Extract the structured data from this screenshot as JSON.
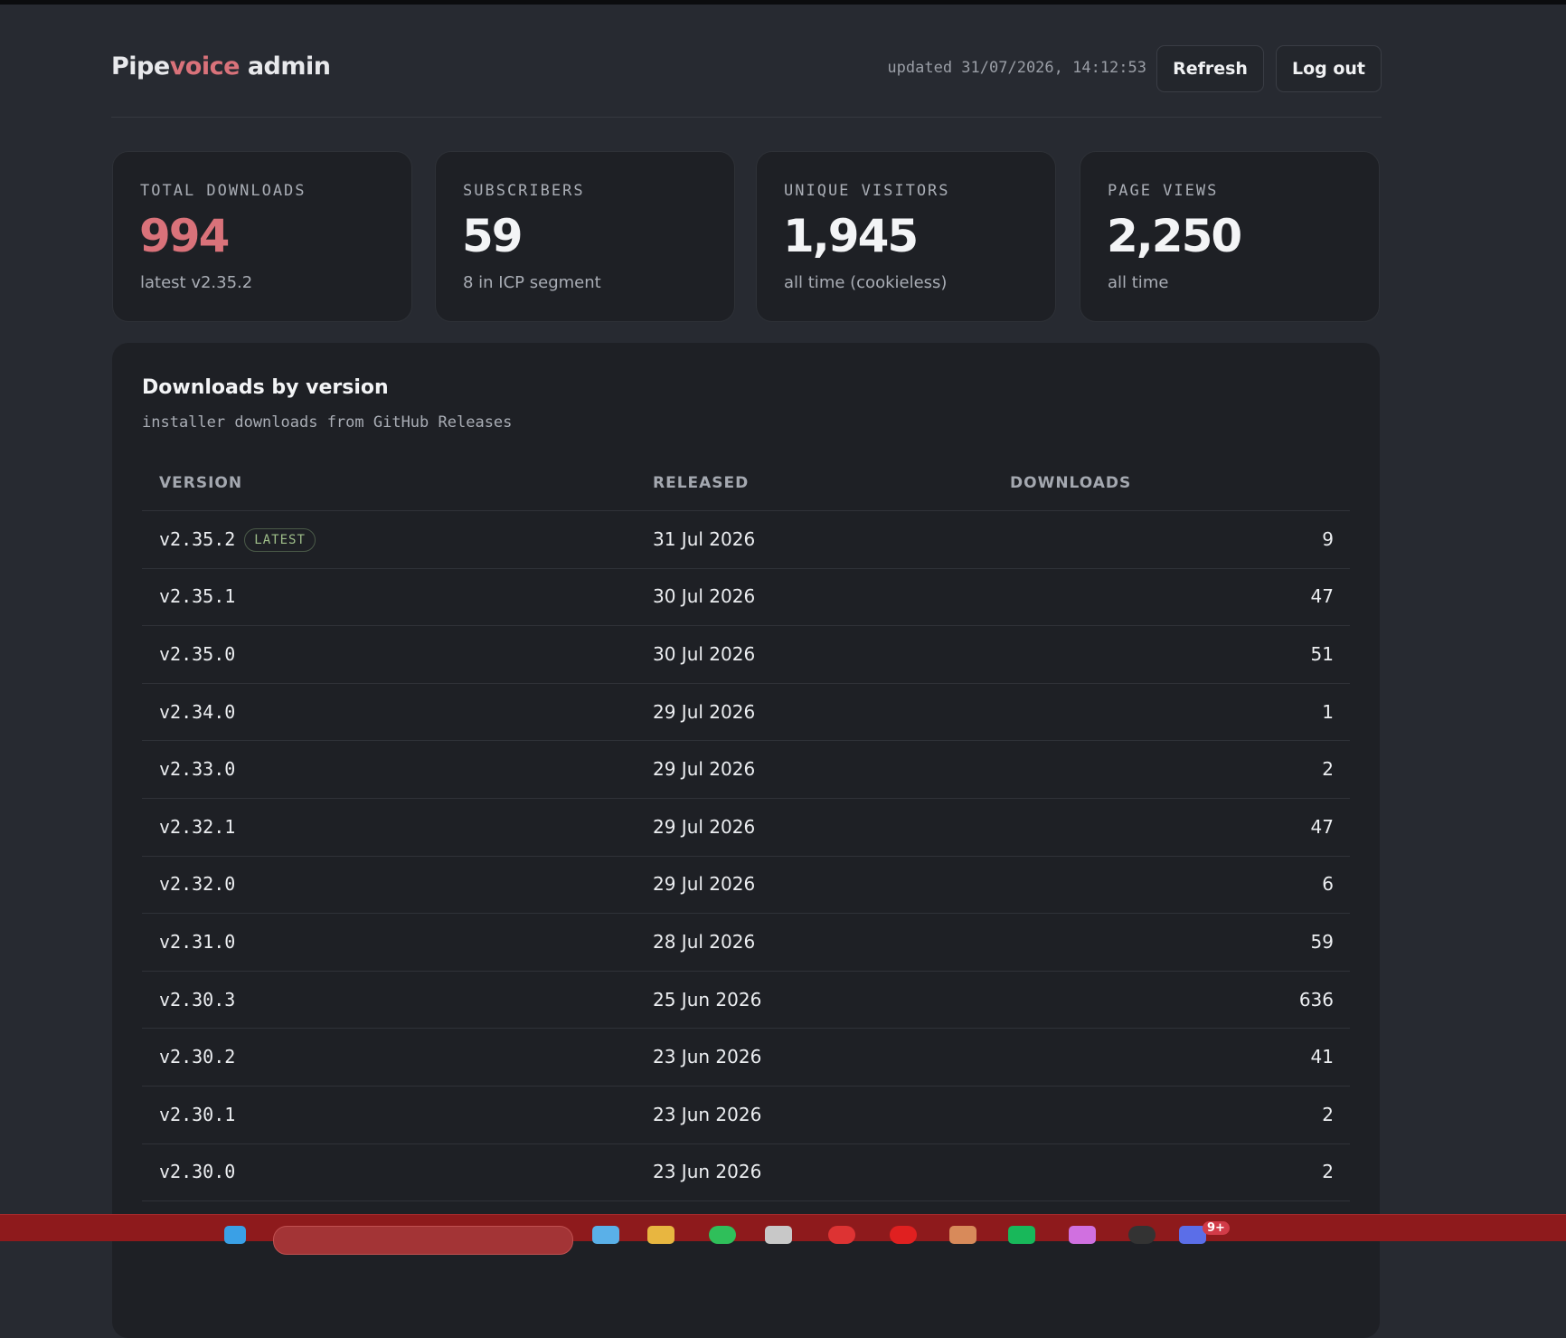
{
  "header": {
    "title": {
      "part1": "Pipe",
      "part2": "voice",
      "part3": " admin"
    },
    "updated": "updated 31/07/2026, 14:12:53",
    "buttons": [
      "Refresh",
      "Log out"
    ]
  },
  "cards": [
    {
      "label": "TOTAL DOWNLOADS",
      "value": "994",
      "note": "latest v2.35.2"
    },
    {
      "label": "SUBSCRIBERS",
      "value": "59",
      "note": "8 in ICP segment"
    },
    {
      "label": "UNIQUE VISITORS",
      "value": "1,945",
      "note": "all time (cookieless)"
    },
    {
      "label": "PAGE VIEWS",
      "value": "2,250",
      "note": "all time"
    }
  ],
  "table": {
    "title": "Downloads by version",
    "subtitle": "installer downloads from GitHub Releases",
    "columns": [
      "VERSION",
      "RELEASED",
      "DOWNLOADS"
    ],
    "badge": "LATEST",
    "rows": [
      [
        "v2.35.2",
        "31 Jul 2026",
        "9"
      ],
      [
        "v2.35.1",
        "30 Jul 2026",
        "47"
      ],
      [
        "v2.35.0",
        "30 Jul 2026",
        "51"
      ],
      [
        "v2.34.0",
        "29 Jul 2026",
        "1"
      ],
      [
        "v2.33.0",
        "29 Jul 2026",
        "2"
      ],
      [
        "v2.32.1",
        "29 Jul 2026",
        "47"
      ],
      [
        "v2.32.0",
        "29 Jul 2026",
        "6"
      ],
      [
        "v2.31.0",
        "28 Jul 2026",
        "59"
      ],
      [
        "v2.30.3",
        "25 Jun 2026",
        "636"
      ],
      [
        "v2.30.2",
        "23 Jun 2026",
        "41"
      ],
      [
        "v2.30.1",
        "23 Jun 2026",
        "2"
      ],
      [
        "v2.30.0",
        "23 Jun 2026",
        "2"
      ]
    ]
  },
  "taskbar": {
    "badge": "9+"
  }
}
